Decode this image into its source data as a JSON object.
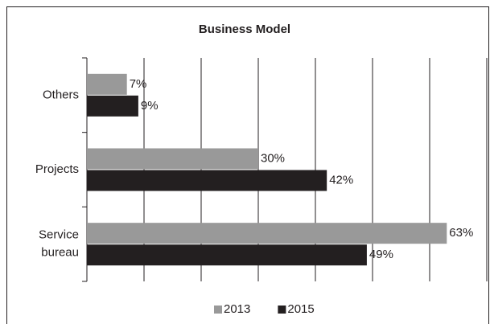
{
  "chart_data": {
    "type": "barh",
    "title": "Business Model",
    "categories": [
      "Others",
      "Projects",
      "Service bureau"
    ],
    "series": [
      {
        "name": "2013",
        "color": "#999999",
        "values": [
          7,
          30,
          63
        ],
        "value_labels": [
          "7%",
          "30%",
          "63%"
        ]
      },
      {
        "name": "2015",
        "color": "#231f20",
        "values": [
          9,
          42,
          49
        ],
        "value_labels": [
          "9%",
          "42%",
          "49%"
        ]
      }
    ],
    "xlim": [
      0,
      70
    ],
    "xticks": [
      0,
      10,
      20,
      30,
      40,
      50,
      60,
      70
    ],
    "grid": true,
    "legend": "bottom"
  }
}
